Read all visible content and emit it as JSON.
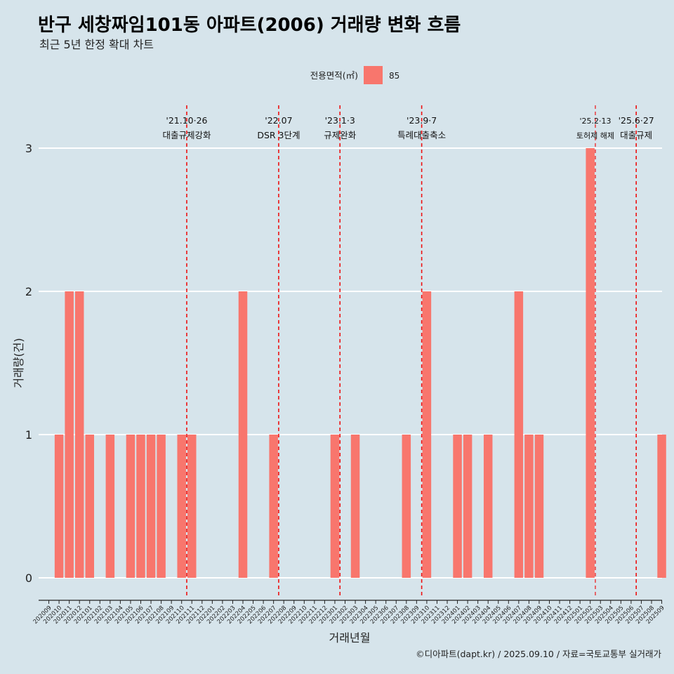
{
  "chart_data": {
    "type": "bar",
    "title": "반구 세창짜임101동 아파트(2006) 거래량 변화 흐름",
    "subtitle": "최근 5년 한정 확대 차트",
    "xlabel": "거래년월",
    "ylabel": "거래량(건)",
    "ylim": [
      0,
      3
    ],
    "yticks": [
      "0",
      "1",
      "2",
      "3"
    ],
    "legend": {
      "title": "전용면적(㎡)",
      "entries": [
        {
          "label": "85",
          "color": "#f8766d"
        }
      ]
    },
    "categories": [
      "202009",
      "202010",
      "202011",
      "202012",
      "202101",
      "202102",
      "202103",
      "202104",
      "202105",
      "202106",
      "202107",
      "202108",
      "202109",
      "202110",
      "202111",
      "202112",
      "202201",
      "202202",
      "202203",
      "202204",
      "202205",
      "202206",
      "202207",
      "202208",
      "202209",
      "202210",
      "202211",
      "202212",
      "202301",
      "202302",
      "202303",
      "202304",
      "202305",
      "202306",
      "202307",
      "202308",
      "202309",
      "202310",
      "202311",
      "202312",
      "202401",
      "202402",
      "202403",
      "202404",
      "202405",
      "202406",
      "202407",
      "202408",
      "202409",
      "202410",
      "202411",
      "202412",
      "202501",
      "202502",
      "202503",
      "202504",
      "202505",
      "202506",
      "202507",
      "202508",
      "202509"
    ],
    "values": [
      0,
      1,
      2,
      2,
      1,
      0,
      1,
      0,
      1,
      1,
      1,
      1,
      0,
      1,
      1,
      0,
      0,
      0,
      0,
      2,
      0,
      0,
      1,
      0,
      0,
      0,
      0,
      0,
      1,
      0,
      1,
      0,
      0,
      0,
      0,
      1,
      0,
      2,
      0,
      0,
      1,
      1,
      0,
      1,
      0,
      0,
      2,
      1,
      1,
      0,
      0,
      0,
      0,
      3,
      0,
      0,
      0,
      0,
      0,
      0,
      1
    ],
    "events": [
      {
        "date": "'21.10·26",
        "label": "대출규제강화",
        "pos": 13.5,
        "small": false
      },
      {
        "date": "'22.07",
        "label": "DSR 3단계",
        "pos": 22.5,
        "small": false
      },
      {
        "date": "'23.1·3",
        "label": "규제완화",
        "pos": 28.5,
        "small": false
      },
      {
        "date": "'23.9·7",
        "label": "특례대출축소",
        "pos": 36.5,
        "small": false
      },
      {
        "date": "'25.2·13",
        "label": "토허제 해제",
        "pos": 53.5,
        "small": true
      },
      {
        "date": "'25.6·27",
        "label": "대출규제",
        "pos": 57.5,
        "small": false
      }
    ],
    "caption": "©디아파트(dapt.kr) / 2025.09.10 / 자료=국토교통부 실거래가"
  }
}
